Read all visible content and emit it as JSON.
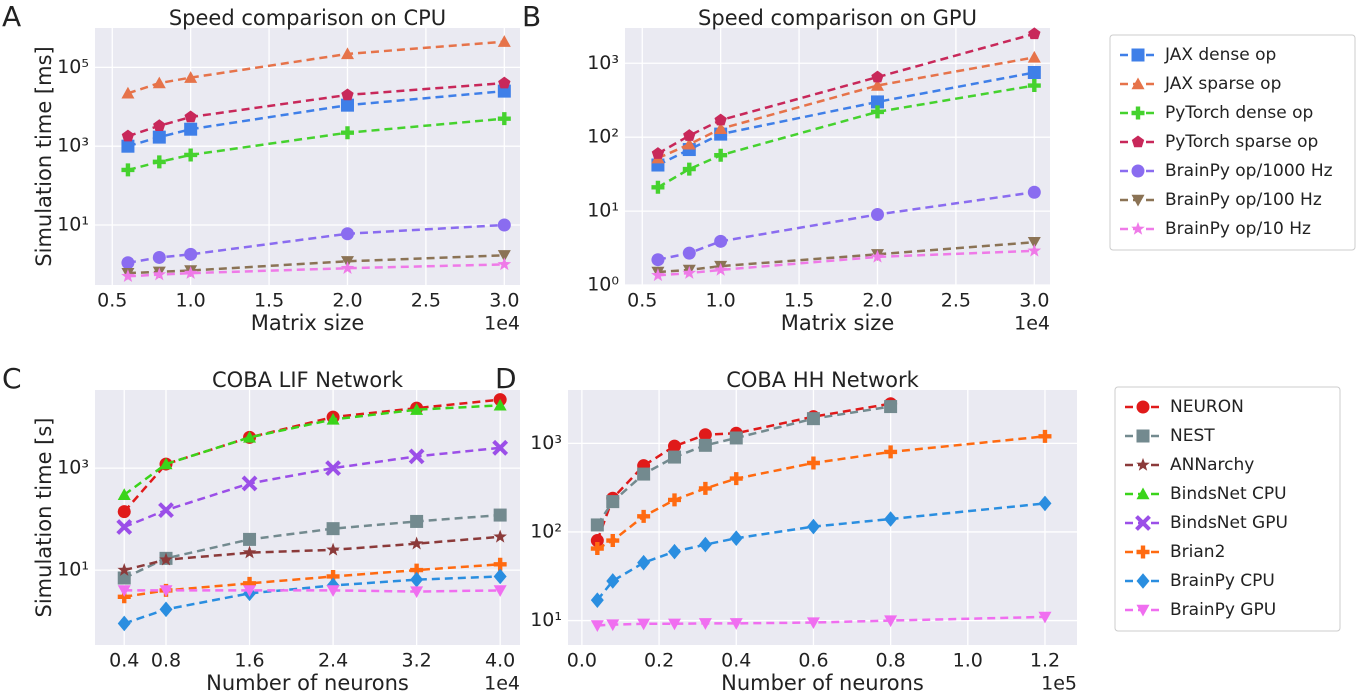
{
  "chart_data": [
    {
      "type": "line",
      "panel_label": "A",
      "title": "Speed comparison on CPU",
      "xlabel": "Matrix size",
      "ylabel": "Simulation time [ms]",
      "x_offset_label": "1e4",
      "yscale": "log",
      "grid": true,
      "legend": true,
      "x": [
        6000,
        8000,
        10000,
        20000,
        30000
      ],
      "xlim": [
        3900,
        31000
      ],
      "xticks": [
        {
          "value": 5000,
          "label": "0.5"
        },
        {
          "value": 10000,
          "label": "1.0"
        },
        {
          "value": 15000,
          "label": "1.5"
        },
        {
          "value": 20000,
          "label": "2.0"
        },
        {
          "value": 25000,
          "label": "2.5"
        },
        {
          "value": 30000,
          "label": "3.0"
        }
      ],
      "ylim": [
        0.3,
        1000000
      ],
      "yticks": [
        {
          "value": 10,
          "label": "10¹"
        },
        {
          "value": 1000,
          "label": "10³"
        },
        {
          "value": 100000,
          "label": "10⁵"
        }
      ],
      "series": [
        {
          "name": "JAX dense op",
          "color": "#3f7fe8",
          "marker": "square",
          "values": [
            1000,
            1700,
            2700,
            11000,
            25000
          ]
        },
        {
          "name": "JAX sparse op",
          "color": "#e6734a",
          "marker": "triangle",
          "values": [
            22000,
            40000,
            55000,
            220000,
            450000
          ]
        },
        {
          "name": "PyTorch dense op",
          "color": "#45d22e",
          "marker": "plus",
          "values": [
            250,
            400,
            600,
            2200,
            5000
          ]
        },
        {
          "name": "PyTorch sparse op",
          "color": "#c8285a",
          "marker": "pentagon",
          "values": [
            1800,
            3300,
            5500,
            20000,
            40000
          ]
        },
        {
          "name": "BrainPy op/1000 Hz",
          "color": "#8a6cf0",
          "marker": "circle",
          "values": [
            1.1,
            1.5,
            1.8,
            6,
            10
          ]
        },
        {
          "name": "BrainPy op/100 Hz",
          "color": "#8b7355",
          "marker": "tridown",
          "values": [
            0.6,
            0.65,
            0.7,
            1.2,
            1.7
          ]
        },
        {
          "name": "BrainPy op/10 Hz",
          "color": "#ef7ae8",
          "marker": "star",
          "values": [
            0.5,
            0.55,
            0.6,
            0.8,
            1.0
          ]
        }
      ]
    },
    {
      "type": "line",
      "panel_label": "B",
      "title": "Speed comparison on GPU",
      "xlabel": "Matrix size",
      "x_offset_label": "1e4",
      "yscale": "log",
      "grid": true,
      "legend": false,
      "x": [
        6000,
        8000,
        10000,
        20000,
        30000
      ],
      "xlim": [
        3900,
        31000
      ],
      "xticks": [
        {
          "value": 5000,
          "label": "0.5"
        },
        {
          "value": 10000,
          "label": "1.0"
        },
        {
          "value": 15000,
          "label": "1.5"
        },
        {
          "value": 20000,
          "label": "2.0"
        },
        {
          "value": 25000,
          "label": "2.5"
        },
        {
          "value": 30000,
          "label": "3.0"
        }
      ],
      "ylim": [
        1,
        3000
      ],
      "yticks": [
        {
          "value": 1,
          "label": "10⁰"
        },
        {
          "value": 10,
          "label": "10¹"
        },
        {
          "value": 100,
          "label": "10²"
        },
        {
          "value": 1000,
          "label": "10³"
        }
      ],
      "series": [
        {
          "name": "JAX dense op",
          "color": "#3f7fe8",
          "marker": "square",
          "values": [
            42,
            68,
            110,
            300,
            750
          ]
        },
        {
          "name": "JAX sparse op",
          "color": "#e6734a",
          "marker": "triangle",
          "values": [
            52,
            80,
            130,
            500,
            1200
          ]
        },
        {
          "name": "PyTorch dense op",
          "color": "#45d22e",
          "marker": "plus",
          "values": [
            21,
            37,
            57,
            220,
            500
          ]
        },
        {
          "name": "PyTorch sparse op",
          "color": "#c8285a",
          "marker": "pentagon",
          "values": [
            60,
            105,
            170,
            650,
            2500
          ]
        },
        {
          "name": "BrainPy op/1000 Hz",
          "color": "#8a6cf0",
          "marker": "circle",
          "values": [
            2.2,
            2.7,
            3.9,
            9,
            18
          ]
        },
        {
          "name": "BrainPy op/100 Hz",
          "color": "#8b7355",
          "marker": "tridown",
          "values": [
            1.5,
            1.6,
            1.8,
            2.6,
            3.8
          ]
        },
        {
          "name": "BrainPy op/10 Hz",
          "color": "#ef7ae8",
          "marker": "star",
          "values": [
            1.35,
            1.45,
            1.6,
            2.4,
            2.9
          ]
        }
      ]
    },
    {
      "type": "line",
      "panel_label": "C",
      "title": "COBA LIF Network",
      "xlabel": "Number of neurons",
      "ylabel": "Simulation time [s]",
      "x_offset_label": "1e4",
      "yscale": "log",
      "grid": true,
      "legend": true,
      "x": [
        4000,
        8000,
        16000,
        24000,
        32000,
        40000
      ],
      "xlim": [
        1200,
        41900
      ],
      "xticks": [
        {
          "value": 4000,
          "label": "0.4"
        },
        {
          "value": 8000,
          "label": "0.8"
        },
        {
          "value": 16000,
          "label": "1.6"
        },
        {
          "value": 24000,
          "label": "2.4"
        },
        {
          "value": 32000,
          "label": "3.2"
        },
        {
          "value": 40000,
          "label": "4.0"
        }
      ],
      "ylim": [
        0.34,
        34000
      ],
      "yticks": [
        {
          "value": 10,
          "label": "10¹"
        },
        {
          "value": 1000,
          "label": "10³"
        }
      ],
      "series": [
        {
          "name": "NEURON",
          "color": "#e01a1a",
          "marker": "circle",
          "values": [
            140,
            1200,
            4000,
            10000,
            15000,
            22000
          ]
        },
        {
          "name": "NEST",
          "color": "#738a8f",
          "marker": "square",
          "values": [
            7,
            17,
            40,
            65,
            90,
            120
          ]
        },
        {
          "name": "ANNarchy",
          "color": "#8b3a3a",
          "marker": "star",
          "values": [
            10,
            16,
            22,
            25,
            33,
            45
          ]
        },
        {
          "name": "BindsNet CPU",
          "color": "#3ad41a",
          "marker": "triangle",
          "values": [
            300,
            1200,
            4000,
            9000,
            14000,
            17000
          ]
        },
        {
          "name": "BindsNet GPU",
          "color": "#9b4fe8",
          "marker": "x",
          "values": [
            70,
            150,
            500,
            1000,
            1700,
            2500
          ]
        },
        {
          "name": "Brian2",
          "color": "#ff6a10",
          "marker": "plus",
          "values": [
            3,
            4,
            5.5,
            7.5,
            10,
            13
          ]
        },
        {
          "name": "BrainPy CPU",
          "color": "#2a8ee0",
          "marker": "diamond",
          "values": [
            0.9,
            1.7,
            3.5,
            5,
            6.5,
            7.5
          ]
        },
        {
          "name": "BrainPy GPU",
          "color": "#f06ef0",
          "marker": "tridown",
          "values": [
            4,
            4,
            4,
            4,
            3.8,
            4
          ]
        }
      ]
    },
    {
      "type": "line",
      "panel_label": "D",
      "title": "COBA HH Network",
      "xlabel": "Number of neurons",
      "x_offset_label": "1e5",
      "yscale": "log",
      "grid": true,
      "legend": false,
      "x": [
        4000,
        8000,
        16000,
        24000,
        32000,
        40000,
        60000,
        80000,
        120000
      ],
      "xlim": [
        -3600,
        128300
      ],
      "xticks": [
        {
          "value": 0,
          "label": "0.0"
        },
        {
          "value": 20000,
          "label": "0.2"
        },
        {
          "value": 40000,
          "label": "0.4"
        },
        {
          "value": 60000,
          "label": "0.6"
        },
        {
          "value": 80000,
          "label": "0.8"
        },
        {
          "value": 100000,
          "label": "1.0"
        },
        {
          "value": 120000,
          "label": "1.2"
        }
      ],
      "ylim": [
        5.3,
        4000
      ],
      "yticks": [
        {
          "value": 10,
          "label": "10¹"
        },
        {
          "value": 100,
          "label": "10²"
        },
        {
          "value": 1000,
          "label": "10³"
        }
      ],
      "series": [
        {
          "name": "NEURON",
          "color": "#e01a1a",
          "marker": "circle",
          "values": [
            80,
            240,
            560,
            930,
            1250,
            1300,
            2000,
            2800,
            null
          ]
        },
        {
          "name": "NEST",
          "color": "#738a8f",
          "marker": "square",
          "values": [
            120,
            220,
            450,
            700,
            950,
            1150,
            1900,
            2600,
            null
          ]
        },
        {
          "name": "Brian2",
          "color": "#ff6a10",
          "marker": "plus",
          "values": [
            65,
            80,
            150,
            230,
            310,
            400,
            600,
            800,
            1200
          ]
        },
        {
          "name": "BrainPy CPU",
          "color": "#2a8ee0",
          "marker": "diamond",
          "values": [
            17,
            28,
            45,
            60,
            72,
            85,
            115,
            140,
            210
          ]
        },
        {
          "name": "BrainPy GPU",
          "color": "#f06ef0",
          "marker": "tridown",
          "values": [
            8.8,
            9,
            9.2,
            9.2,
            9.3,
            9.3,
            9.5,
            10,
            11
          ]
        }
      ]
    }
  ]
}
